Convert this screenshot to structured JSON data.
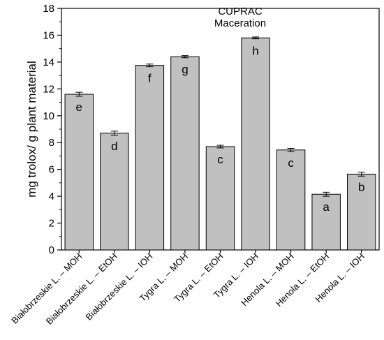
{
  "chart_data": {
    "type": "bar",
    "title": "CUPRAC",
    "subtitle": "Maceration",
    "ylabel": "mg trolox/ g plant material",
    "xlabel": "",
    "ylim": [
      0,
      18
    ],
    "yticks": [
      0,
      2,
      4,
      6,
      8,
      10,
      12,
      14,
      16,
      18
    ],
    "categories": [
      "Białobrzeskie L. – MOH",
      "Białobrzeskie L. – EtOH",
      "Białobrzeskie L. – IOH",
      "Tygra L. – MOH",
      "Tygra L. – EtOH",
      "Tygra L. – IOH",
      "Henola L. – MOH",
      "Henola L. – EtOH",
      "Henola L. – IOH"
    ],
    "values": [
      11.6,
      8.7,
      13.75,
      14.4,
      7.7,
      15.8,
      7.45,
      4.15,
      5.65
    ],
    "errors": [
      0.15,
      0.15,
      0.1,
      0.08,
      0.1,
      0.07,
      0.12,
      0.15,
      0.15
    ],
    "annotations": [
      "e",
      "d",
      "f",
      "g",
      "c",
      "h",
      "c",
      "a",
      "b"
    ],
    "bar_color": "#c0c0c0",
    "grid": false,
    "legend": "none"
  }
}
